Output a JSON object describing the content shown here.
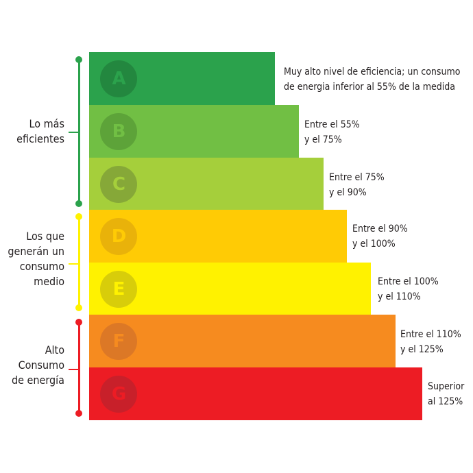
{
  "ratings": [
    {
      "letter": "A",
      "color": "#2ba24c",
      "circle_color": "#23873f",
      "letter_color": "#2ba24c",
      "lines": [
        "Muy alto nivel de eficiencia; un consumo",
        "de energia inferior al 55% de la medida"
      ]
    },
    {
      "letter": "B",
      "color": "#71bf44",
      "circle_color": "#5da339",
      "letter_color": "#71bf44",
      "lines": [
        "Entre el 55%",
        "y el 75%"
      ]
    },
    {
      "letter": "C",
      "color": "#a5cf3b",
      "circle_color": "#86a838",
      "letter_color": "#a5cf3b",
      "lines": [
        "Entre el 75%",
        "y el 90%"
      ]
    },
    {
      "letter": "D",
      "color": "#ffcb05",
      "circle_color": "#e9b20a",
      "letter_color": "#ffcb05",
      "lines": [
        "Entre el 90%",
        "y el 100%"
      ]
    },
    {
      "letter": "E",
      "color": "#fff200",
      "circle_color": "#d8cd0a",
      "letter_color": "#fff200",
      "lines": [
        "Entre el 100%",
        "y el 110%"
      ]
    },
    {
      "letter": "F",
      "color": "#f68b1f",
      "circle_color": "#dc7826",
      "letter_color": "#f68b1f",
      "lines": [
        "Entre el 110%",
        "y el 125%"
      ]
    },
    {
      "letter": "G",
      "color": "#ed1c24",
      "circle_color": "#c8202a",
      "letter_color": "#ed1c24",
      "lines": [
        "Superior",
        "al 125%"
      ]
    }
  ],
  "groups": [
    {
      "lines": [
        "Lo más",
        "eficientes"
      ],
      "color": "#2ba24c"
    },
    {
      "lines": [
        "Los que",
        "generán un",
        "consumo",
        "medio"
      ],
      "color": "#fff200"
    },
    {
      "lines": [
        "Alto",
        "Consumo",
        "de energía"
      ],
      "color": "#ed1c24"
    }
  ]
}
